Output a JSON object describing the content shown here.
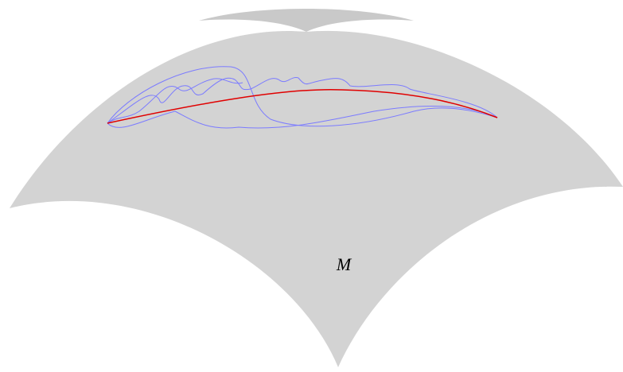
{
  "label": "M"
}
